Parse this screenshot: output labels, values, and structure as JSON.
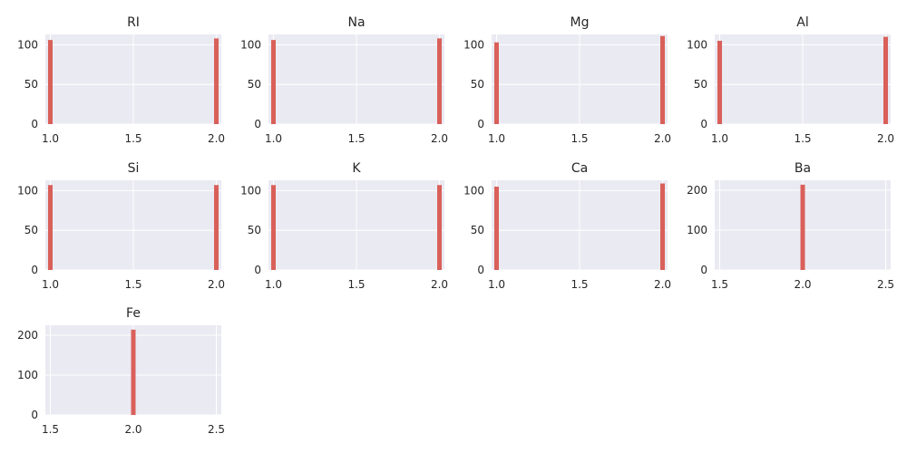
{
  "chart_data": {
    "type": "bar",
    "bar_color": "#d9605a",
    "grid": true,
    "panels": [
      {
        "title": "RI",
        "xlim": [
          0.97,
          2.03
        ],
        "ylim": [
          0,
          113
        ],
        "xticks": [
          1.0,
          1.5,
          2.0
        ],
        "xtick_labels": [
          "1.0",
          "1.5",
          "2.0"
        ],
        "yticks": [
          0,
          50,
          100
        ],
        "ytick_labels": [
          "0",
          "50",
          "100"
        ],
        "bars": [
          {
            "x": 1.0,
            "value": 106
          },
          {
            "x": 2.0,
            "value": 108
          }
        ]
      },
      {
        "title": "Na",
        "xlim": [
          0.97,
          2.03
        ],
        "ylim": [
          0,
          113
        ],
        "xticks": [
          1.0,
          1.5,
          2.0
        ],
        "xtick_labels": [
          "1.0",
          "1.5",
          "2.0"
        ],
        "yticks": [
          0,
          50,
          100
        ],
        "ytick_labels": [
          "0",
          "50",
          "100"
        ],
        "bars": [
          {
            "x": 1.0,
            "value": 106
          },
          {
            "x": 2.0,
            "value": 108
          }
        ]
      },
      {
        "title": "Mg",
        "xlim": [
          0.97,
          2.03
        ],
        "ylim": [
          0,
          113
        ],
        "xticks": [
          1.0,
          1.5,
          2.0
        ],
        "xtick_labels": [
          "1.0",
          "1.5",
          "2.0"
        ],
        "yticks": [
          0,
          50,
          100
        ],
        "ytick_labels": [
          "0",
          "50",
          "100"
        ],
        "bars": [
          {
            "x": 1.0,
            "value": 103
          },
          {
            "x": 2.0,
            "value": 111
          }
        ]
      },
      {
        "title": "Al",
        "xlim": [
          0.97,
          2.03
        ],
        "ylim": [
          0,
          113
        ],
        "xticks": [
          1.0,
          1.5,
          2.0
        ],
        "xtick_labels": [
          "1.0",
          "1.5",
          "2.0"
        ],
        "yticks": [
          0,
          50,
          100
        ],
        "ytick_labels": [
          "0",
          "50",
          "100"
        ],
        "bars": [
          {
            "x": 1.0,
            "value": 105
          },
          {
            "x": 2.0,
            "value": 110
          }
        ]
      },
      {
        "title": "Si",
        "xlim": [
          0.97,
          2.03
        ],
        "ylim": [
          0,
          113
        ],
        "xticks": [
          1.0,
          1.5,
          2.0
        ],
        "xtick_labels": [
          "1.0",
          "1.5",
          "2.0"
        ],
        "yticks": [
          0,
          50,
          100
        ],
        "ytick_labels": [
          "0",
          "50",
          "100"
        ],
        "bars": [
          {
            "x": 1.0,
            "value": 107
          },
          {
            "x": 2.0,
            "value": 107
          }
        ]
      },
      {
        "title": "K",
        "xlim": [
          0.97,
          2.03
        ],
        "ylim": [
          0,
          113
        ],
        "xticks": [
          1.0,
          1.5,
          2.0
        ],
        "xtick_labels": [
          "1.0",
          "1.5",
          "2.0"
        ],
        "yticks": [
          0,
          50,
          100
        ],
        "ytick_labels": [
          "0",
          "50",
          "100"
        ],
        "bars": [
          {
            "x": 1.0,
            "value": 107
          },
          {
            "x": 2.0,
            "value": 107
          }
        ]
      },
      {
        "title": "Ca",
        "xlim": [
          0.97,
          2.03
        ],
        "ylim": [
          0,
          113
        ],
        "xticks": [
          1.0,
          1.5,
          2.0
        ],
        "xtick_labels": [
          "1.0",
          "1.5",
          "2.0"
        ],
        "yticks": [
          0,
          50,
          100
        ],
        "ytick_labels": [
          "0",
          "50",
          "100"
        ],
        "bars": [
          {
            "x": 1.0,
            "value": 105
          },
          {
            "x": 2.0,
            "value": 109
          }
        ]
      },
      {
        "title": "Ba",
        "xlim": [
          1.47,
          2.53
        ],
        "ylim": [
          0,
          225
        ],
        "xticks": [
          1.5,
          2.0,
          2.5
        ],
        "xtick_labels": [
          "1.5",
          "2.0",
          "2.5"
        ],
        "yticks": [
          0,
          100,
          200
        ],
        "ytick_labels": [
          "0",
          "100",
          "200"
        ],
        "bars": [
          {
            "x": 2.0,
            "value": 214
          }
        ]
      },
      {
        "title": "Fe",
        "xlim": [
          1.47,
          2.53
        ],
        "ylim": [
          0,
          225
        ],
        "xticks": [
          1.5,
          2.0,
          2.5
        ],
        "xtick_labels": [
          "1.5",
          "2.0",
          "2.5"
        ],
        "yticks": [
          0,
          100,
          200
        ],
        "ytick_labels": [
          "0",
          "100",
          "200"
        ],
        "bars": [
          {
            "x": 2.0,
            "value": 214
          }
        ]
      }
    ]
  }
}
